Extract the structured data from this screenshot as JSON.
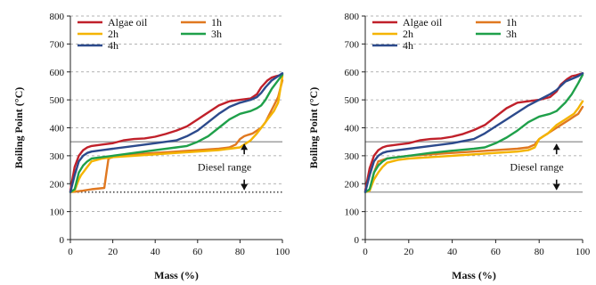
{
  "chart_data": [
    {
      "type": "line",
      "xlabel": "Mass (%)",
      "ylabel": "Boiling Point (°C)",
      "xlim": [
        0,
        100
      ],
      "ylim": [
        0,
        800
      ],
      "xticks": [
        0,
        20,
        40,
        60,
        80,
        100
      ],
      "yticks": [
        0,
        100,
        200,
        300,
        400,
        500,
        600,
        700,
        800
      ],
      "grid": "horizontal dashed",
      "legend": "top-left, two columns",
      "reference_lines": [
        {
          "y": 350,
          "style": "solid"
        },
        {
          "y": 170,
          "style": "dotted"
        }
      ],
      "annotation": {
        "text": "Diesel range",
        "x": 82,
        "y": 260
      },
      "series": [
        {
          "name": "Algae oil",
          "color": "#c0202a",
          "x": [
            0,
            2,
            4,
            6,
            8,
            10,
            15,
            20,
            25,
            30,
            35,
            40,
            45,
            50,
            55,
            60,
            65,
            70,
            75,
            80,
            85,
            88,
            90,
            93,
            95,
            97,
            100
          ],
          "y": [
            175,
            260,
            300,
            320,
            330,
            335,
            340,
            345,
            355,
            360,
            362,
            368,
            378,
            390,
            405,
            430,
            455,
            480,
            495,
            500,
            505,
            520,
            545,
            570,
            580,
            585,
            590
          ]
        },
        {
          "name": "1h",
          "color": "#e07820",
          "x": [
            0,
            3,
            6,
            10,
            16,
            17,
            18,
            22,
            30,
            40,
            50,
            60,
            70,
            75,
            78,
            80,
            82,
            84,
            86,
            88,
            90,
            92,
            94,
            96,
            98,
            100
          ],
          "y": [
            170,
            172,
            175,
            180,
            185,
            240,
            290,
            300,
            305,
            310,
            315,
            320,
            325,
            330,
            340,
            360,
            370,
            375,
            380,
            390,
            400,
            420,
            450,
            480,
            510,
            570
          ]
        },
        {
          "name": "2h",
          "color": "#f4b400",
          "x": [
            0,
            2,
            4,
            5,
            6,
            8,
            10,
            15,
            20,
            30,
            40,
            50,
            60,
            70,
            75,
            80,
            82,
            85,
            88,
            90,
            92,
            94,
            96,
            98,
            100
          ],
          "y": [
            170,
            175,
            215,
            230,
            240,
            260,
            280,
            290,
            295,
            300,
            305,
            310,
            315,
            320,
            325,
            330,
            340,
            355,
            380,
            400,
            420,
            440,
            460,
            490,
            585
          ]
        },
        {
          "name": "3h",
          "color": "#1fa04a",
          "x": [
            0,
            2,
            4,
            6,
            8,
            10,
            15,
            20,
            30,
            40,
            50,
            55,
            60,
            65,
            70,
            75,
            80,
            85,
            88,
            90,
            92,
            95,
            98,
            100
          ],
          "y": [
            170,
            180,
            240,
            265,
            280,
            290,
            295,
            300,
            310,
            320,
            330,
            335,
            350,
            370,
            400,
            430,
            450,
            460,
            470,
            480,
            500,
            540,
            570,
            590
          ]
        },
        {
          "name": "4h",
          "color": "#2c4a8c",
          "x": [
            0,
            2,
            4,
            6,
            8,
            10,
            15,
            20,
            30,
            40,
            50,
            55,
            60,
            65,
            70,
            75,
            80,
            85,
            88,
            90,
            92,
            95,
            98,
            100
          ],
          "y": [
            170,
            230,
            280,
            300,
            310,
            315,
            320,
            325,
            335,
            345,
            355,
            370,
            390,
            420,
            450,
            475,
            490,
            500,
            510,
            525,
            545,
            570,
            585,
            595
          ]
        }
      ]
    },
    {
      "type": "line",
      "xlabel": "Mass (%)",
      "ylabel": "Boiling Point (°C)",
      "xlim": [
        0,
        100
      ],
      "ylim": [
        0,
        800
      ],
      "xticks": [
        0,
        20,
        40,
        60,
        80,
        100
      ],
      "yticks": [
        0,
        100,
        200,
        300,
        400,
        500,
        600,
        700,
        800
      ],
      "grid": "horizontal dashed",
      "legend": "top-left, two columns",
      "reference_lines": [
        {
          "y": 350,
          "style": "solid"
        },
        {
          "y": 170,
          "style": "solid"
        }
      ],
      "annotation": {
        "text": "Diesel range",
        "x": 88,
        "y": 260
      },
      "series": [
        {
          "name": "Algae oil",
          "color": "#c0202a",
          "x": [
            0,
            2,
            4,
            6,
            8,
            10,
            15,
            20,
            25,
            30,
            35,
            40,
            45,
            50,
            55,
            60,
            65,
            70,
            75,
            80,
            85,
            88,
            90,
            93,
            95,
            97,
            100
          ],
          "y": [
            175,
            255,
            300,
            320,
            330,
            335,
            340,
            345,
            355,
            360,
            362,
            368,
            378,
            392,
            410,
            440,
            470,
            490,
            495,
            500,
            510,
            530,
            555,
            575,
            585,
            588,
            595
          ]
        },
        {
          "name": "1h",
          "color": "#e07820",
          "x": [
            0,
            2,
            4,
            6,
            10,
            20,
            30,
            40,
            50,
            60,
            70,
            75,
            78,
            80,
            82,
            84,
            86,
            88,
            90,
            92,
            94,
            96,
            98,
            100
          ],
          "y": [
            170,
            175,
            240,
            280,
            290,
            300,
            305,
            310,
            315,
            320,
            325,
            330,
            340,
            360,
            370,
            380,
            390,
            400,
            410,
            420,
            430,
            440,
            450,
            475
          ]
        },
        {
          "name": "2h",
          "color": "#f4b400",
          "x": [
            0,
            2,
            4,
            6,
            8,
            10,
            15,
            20,
            30,
            40,
            50,
            60,
            70,
            75,
            78,
            80,
            82,
            84,
            86,
            88,
            90,
            92,
            94,
            96,
            98,
            100
          ],
          "y": [
            170,
            175,
            215,
            240,
            260,
            275,
            285,
            290,
            295,
            300,
            305,
            310,
            315,
            320,
            330,
            360,
            370,
            380,
            395,
            410,
            420,
            430,
            440,
            450,
            470,
            495
          ]
        },
        {
          "name": "3h",
          "color": "#1fa04a",
          "x": [
            0,
            2,
            4,
            6,
            8,
            10,
            15,
            20,
            30,
            40,
            50,
            55,
            60,
            65,
            70,
            75,
            80,
            85,
            88,
            90,
            92,
            95,
            98,
            100
          ],
          "y": [
            170,
            180,
            240,
            265,
            280,
            290,
            295,
            300,
            310,
            318,
            325,
            330,
            345,
            365,
            390,
            420,
            440,
            450,
            460,
            475,
            490,
            520,
            560,
            590
          ]
        },
        {
          "name": "4h",
          "color": "#2c4a8c",
          "x": [
            0,
            2,
            4,
            6,
            8,
            10,
            15,
            20,
            30,
            40,
            50,
            55,
            60,
            65,
            70,
            75,
            80,
            85,
            88,
            90,
            92,
            95,
            98,
            100
          ],
          "y": [
            170,
            230,
            280,
            300,
            310,
            315,
            320,
            325,
            335,
            345,
            360,
            380,
            405,
            430,
            455,
            480,
            500,
            520,
            535,
            550,
            565,
            575,
            585,
            595
          ]
        }
      ]
    }
  ]
}
